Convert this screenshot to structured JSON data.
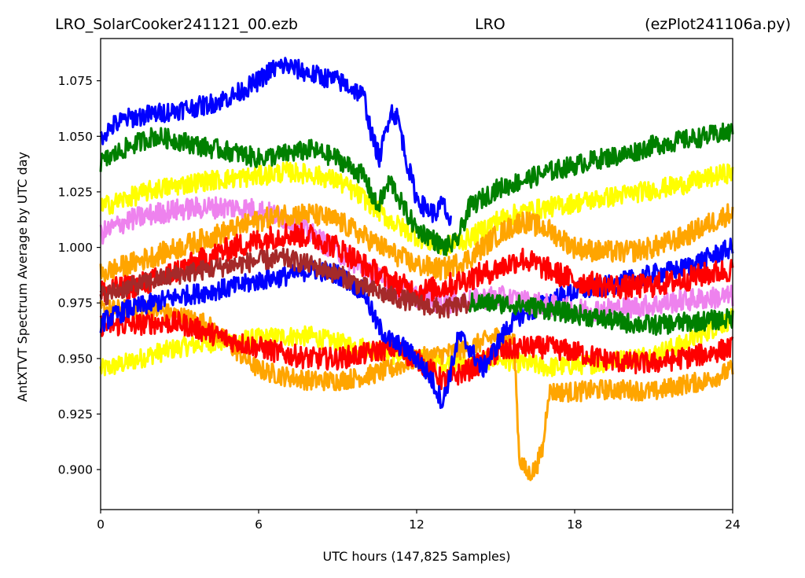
{
  "header": {
    "title_left": "LRO_SolarCooker241121_00.ezb",
    "title_center": "LRO",
    "title_right": "(ezPlot241106a.py)"
  },
  "chart_data": {
    "type": "line",
    "title": "LRO_SolarCooker241121_00.ezb LRO (ezPlot241106a.py)",
    "xlabel": "UTC hours  (147,825 Samples)",
    "ylabel": "AntXTVT Spectrum Average by UTC day",
    "xlim": [
      0,
      24
    ],
    "ylim": [
      0.882,
      1.094
    ],
    "x_ticks": [
      0,
      6,
      12,
      18,
      24
    ],
    "x_tick_labels": [
      "0",
      "6",
      "12",
      "18",
      "24"
    ],
    "y_ticks": [
      0.9,
      0.925,
      0.95,
      0.975,
      1.0,
      1.025,
      1.05,
      1.075
    ],
    "y_tick_labels": [
      "0.900",
      "0.925",
      "0.950",
      "0.975",
      "1.000",
      "1.025",
      "1.050",
      "1.075"
    ],
    "grid": false,
    "legend": "none",
    "series": [
      {
        "color": "#ffff00",
        "noise": 0.0045,
        "x": [
          0,
          1,
          2,
          3,
          4,
          5,
          6,
          7,
          8,
          9,
          10,
          11,
          12,
          13,
          14,
          15,
          16,
          17,
          18,
          19,
          20,
          21,
          22,
          23,
          24
        ],
        "y": [
          0.945,
          0.948,
          0.952,
          0.955,
          0.957,
          0.958,
          0.959,
          0.96,
          0.96,
          0.957,
          0.955,
          0.952,
          0.95,
          0.948,
          0.948,
          0.95,
          0.948,
          0.946,
          0.947,
          0.948,
          0.95,
          0.952,
          0.956,
          0.962,
          0.968
        ]
      },
      {
        "color": "#ffa500",
        "noise": 0.0045,
        "x": [
          0,
          2,
          4,
          5,
          6,
          7,
          8,
          9,
          10,
          11,
          12,
          13,
          14,
          15,
          15.7,
          15.9,
          16.2,
          16.5,
          16.8,
          17,
          18,
          19,
          20,
          21,
          22,
          23,
          24
        ],
        "y": [
          0.972,
          0.972,
          0.966,
          0.955,
          0.945,
          0.942,
          0.94,
          0.94,
          0.942,
          0.945,
          0.95,
          0.952,
          0.955,
          0.96,
          0.958,
          0.905,
          0.898,
          0.9,
          0.91,
          0.935,
          0.935,
          0.936,
          0.936,
          0.935,
          0.938,
          0.94,
          0.945
        ]
      },
      {
        "color": "#ff0000",
        "noise": 0.005,
        "x": [
          0,
          1,
          2,
          3,
          4,
          5,
          6,
          7,
          8,
          9,
          10,
          11,
          12,
          13,
          14,
          15,
          16,
          17,
          18,
          19,
          20,
          21,
          22,
          23,
          24
        ],
        "y": [
          0.965,
          0.965,
          0.966,
          0.966,
          0.962,
          0.958,
          0.955,
          0.952,
          0.95,
          0.95,
          0.952,
          0.955,
          0.95,
          0.94,
          0.945,
          0.952,
          0.955,
          0.955,
          0.953,
          0.95,
          0.948,
          0.948,
          0.95,
          0.952,
          0.955
        ]
      },
      {
        "color": "#0000ff",
        "noise": 0.0045,
        "x": [
          0,
          1,
          2,
          3,
          4,
          5,
          6,
          7,
          8,
          9,
          10,
          10.5,
          11,
          11.5,
          12,
          12.5,
          13,
          13.3,
          13.6,
          14,
          14.5,
          15,
          15.5,
          16,
          16.5,
          17,
          18,
          19,
          20,
          21,
          22,
          23,
          24
        ],
        "y": [
          0.966,
          0.972,
          0.975,
          0.978,
          0.98,
          0.982,
          0.985,
          0.987,
          0.99,
          0.988,
          0.98,
          0.965,
          0.958,
          0.955,
          0.95,
          0.942,
          0.93,
          0.945,
          0.96,
          0.955,
          0.945,
          0.955,
          0.965,
          0.97,
          0.972,
          0.976,
          0.98,
          0.982,
          0.985,
          0.988,
          0.99,
          0.995,
          1.0
        ]
      },
      {
        "color": "#ee82ee",
        "noise": 0.005,
        "x": [
          0,
          1,
          2,
          3,
          4,
          5,
          6,
          7,
          8,
          9,
          10,
          11,
          12,
          13,
          14,
          15,
          16,
          17,
          18,
          19,
          20,
          21,
          22,
          23,
          24
        ],
        "y": [
          1.006,
          1.012,
          1.015,
          1.017,
          1.018,
          1.018,
          1.017,
          1.013,
          1.006,
          0.998,
          0.99,
          0.983,
          0.978,
          0.975,
          0.976,
          0.978,
          0.976,
          0.974,
          0.972,
          0.972,
          0.973,
          0.974,
          0.976,
          0.977,
          0.978
        ]
      },
      {
        "color": "#ffff00",
        "noise": 0.0045,
        "x": [
          0,
          1,
          2,
          3,
          4,
          5,
          6,
          7,
          8,
          9,
          10,
          11,
          12,
          13,
          14,
          15,
          16,
          17,
          18,
          19,
          20,
          21,
          22,
          23,
          24
        ],
        "y": [
          1.018,
          1.022,
          1.026,
          1.028,
          1.03,
          1.031,
          1.032,
          1.034,
          1.033,
          1.03,
          1.022,
          1.012,
          1.005,
          1.0,
          1.004,
          1.012,
          1.016,
          1.018,
          1.02,
          1.022,
          1.024,
          1.026,
          1.028,
          1.031,
          1.034
        ]
      },
      {
        "color": "#ffa500",
        "noise": 0.005,
        "x": [
          0,
          1,
          2,
          3,
          4,
          5,
          6,
          7,
          8,
          9,
          10,
          11,
          12,
          13,
          14,
          15,
          16,
          17,
          18,
          19,
          20,
          21,
          22,
          23,
          24
        ],
        "y": [
          0.988,
          0.992,
          0.996,
          1.0,
          1.004,
          1.008,
          1.012,
          1.015,
          1.015,
          1.012,
          1.005,
          0.998,
          0.992,
          0.99,
          0.995,
          1.005,
          1.012,
          1.008,
          1.0,
          0.998,
          0.998,
          1.0,
          1.004,
          1.01,
          1.016
        ]
      },
      {
        "color": "#ff0000",
        "noise": 0.0055,
        "x": [
          0,
          1,
          2,
          3,
          4,
          5,
          6,
          7,
          8,
          9,
          10,
          11,
          12,
          13,
          14,
          15,
          16,
          17,
          18,
          19,
          20,
          21,
          22,
          23,
          24
        ],
        "y": [
          0.98,
          0.982,
          0.985,
          0.99,
          0.995,
          1.0,
          1.003,
          1.006,
          1.005,
          1.0,
          0.992,
          0.985,
          0.98,
          0.982,
          0.986,
          0.99,
          0.995,
          0.99,
          0.985,
          0.983,
          0.982,
          0.983,
          0.985,
          0.988,
          0.99
        ]
      },
      {
        "color": "#a52a2a",
        "noise": 0.0045,
        "x": [
          0,
          1,
          2,
          3,
          4,
          5,
          6,
          7,
          8,
          9,
          10,
          11,
          12,
          13,
          14
        ],
        "y": [
          0.978,
          0.982,
          0.985,
          0.988,
          0.99,
          0.992,
          0.994,
          0.995,
          0.992,
          0.988,
          0.982,
          0.978,
          0.975,
          0.972,
          0.975
        ]
      },
      {
        "color": "#008000",
        "noise": 0.0045,
        "x": [
          0,
          1,
          2,
          3,
          4,
          5,
          6,
          7,
          8,
          9,
          10,
          10.5,
          11,
          11.5,
          12,
          12.5,
          13,
          13.5,
          14,
          15,
          16,
          17,
          18,
          19,
          20,
          21,
          22,
          23,
          24
        ],
        "y": [
          1.038,
          1.045,
          1.05,
          1.048,
          1.045,
          1.043,
          1.04,
          1.042,
          1.044,
          1.04,
          1.032,
          1.018,
          1.03,
          1.018,
          1.008,
          1.005,
          1.0,
          1.002,
          1.018,
          1.026,
          1.03,
          1.034,
          1.037,
          1.04,
          1.042,
          1.046,
          1.048,
          1.05,
          1.052
        ]
      },
      {
        "color": "#008000",
        "noise": 0.0045,
        "x": [
          14,
          15,
          16,
          17,
          18,
          19,
          20,
          21,
          22,
          23,
          24
        ],
        "y": [
          0.975,
          0.975,
          0.974,
          0.972,
          0.97,
          0.968,
          0.966,
          0.965,
          0.966,
          0.967,
          0.968
        ]
      },
      {
        "color": "#0000ff",
        "noise": 0.0045,
        "x": [
          0,
          0.5,
          1,
          2,
          3,
          4,
          5,
          6,
          6.5,
          7,
          7.5,
          8,
          9,
          9.5,
          10,
          10.3,
          10.6,
          11,
          11.3,
          11.6,
          12,
          12.3,
          12.7,
          13,
          13.3
        ],
        "y": [
          1.05,
          1.055,
          1.058,
          1.06,
          1.062,
          1.064,
          1.068,
          1.075,
          1.08,
          1.082,
          1.08,
          1.078,
          1.075,
          1.072,
          1.068,
          1.05,
          1.04,
          1.062,
          1.058,
          1.04,
          1.022,
          1.018,
          1.015,
          1.02,
          1.01
        ]
      }
    ]
  }
}
